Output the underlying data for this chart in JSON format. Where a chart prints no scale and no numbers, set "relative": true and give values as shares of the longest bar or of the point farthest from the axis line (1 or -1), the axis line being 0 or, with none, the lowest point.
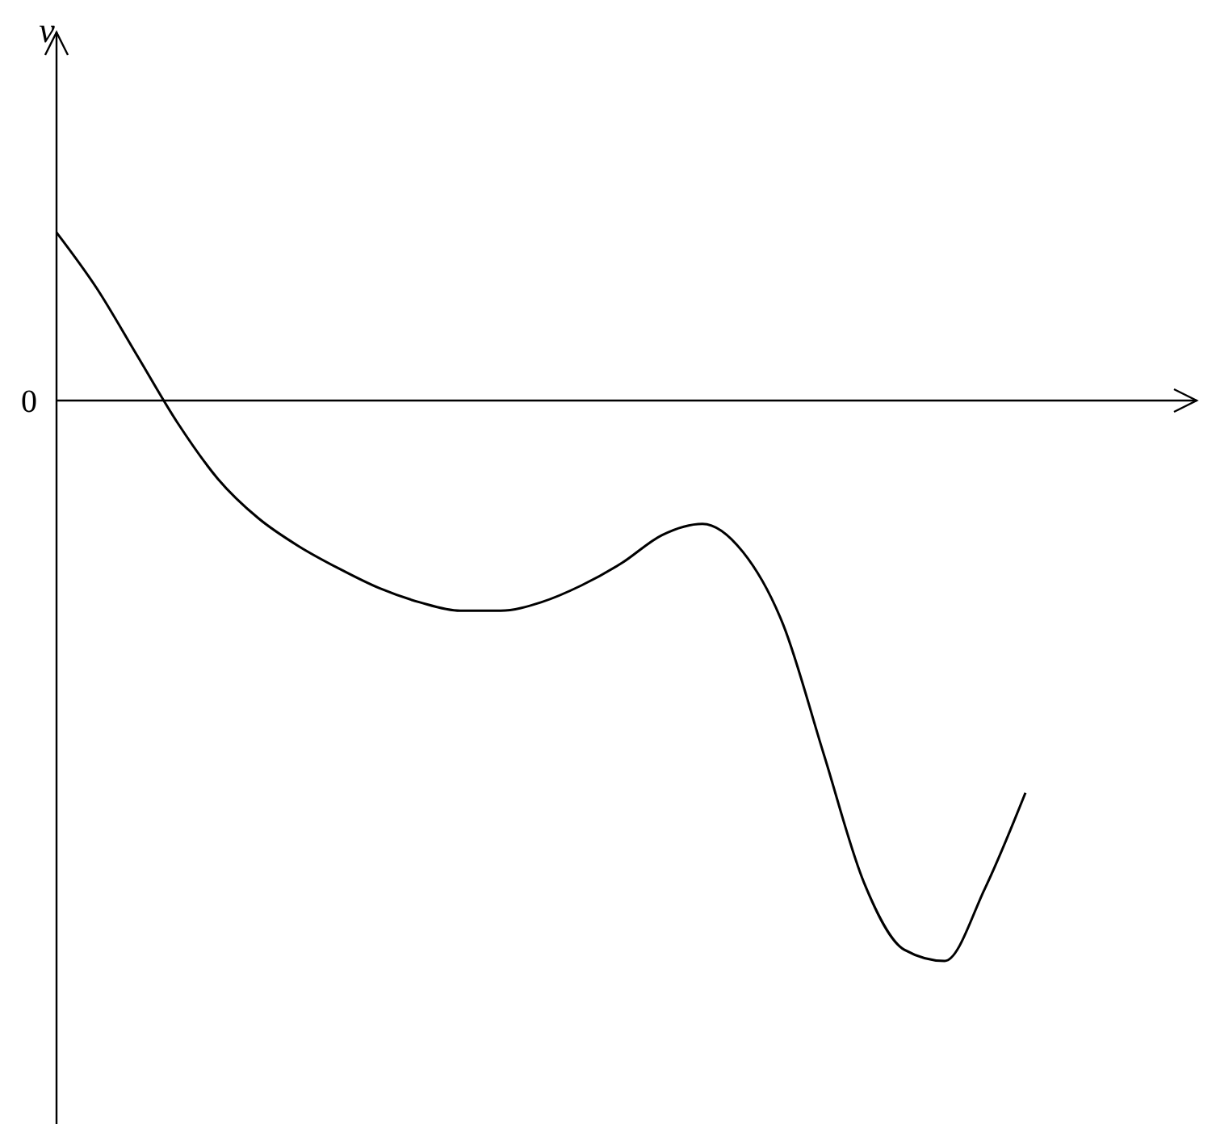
{
  "chart_data": {
    "type": "line",
    "relative": true,
    "annotations": [
      "v",
      "0"
    ],
    "marker": "none",
    "line_style": "solid",
    "categories": [
      null,
      null,
      null,
      null,
      null,
      null,
      null,
      null,
      null,
      null,
      null,
      null,
      null,
      null,
      null,
      null,
      null,
      null,
      null,
      null,
      null,
      null,
      null,
      null,
      null
    ],
    "series": [
      {
        "color": "#000000",
        "values": [
          0.3,
          0.2,
          0.08,
          -0.04,
          -0.14,
          -0.21,
          -0.26,
          -0.3,
          -0.335,
          -0.36,
          -0.375,
          -0.375,
          -0.36,
          -0.33,
          -0.29,
          -0.24,
          -0.22,
          -0.27,
          -0.4,
          -0.63,
          -0.86,
          -0.98,
          -1.0,
          -0.87,
          -0.7
        ]
      }
    ]
  }
}
